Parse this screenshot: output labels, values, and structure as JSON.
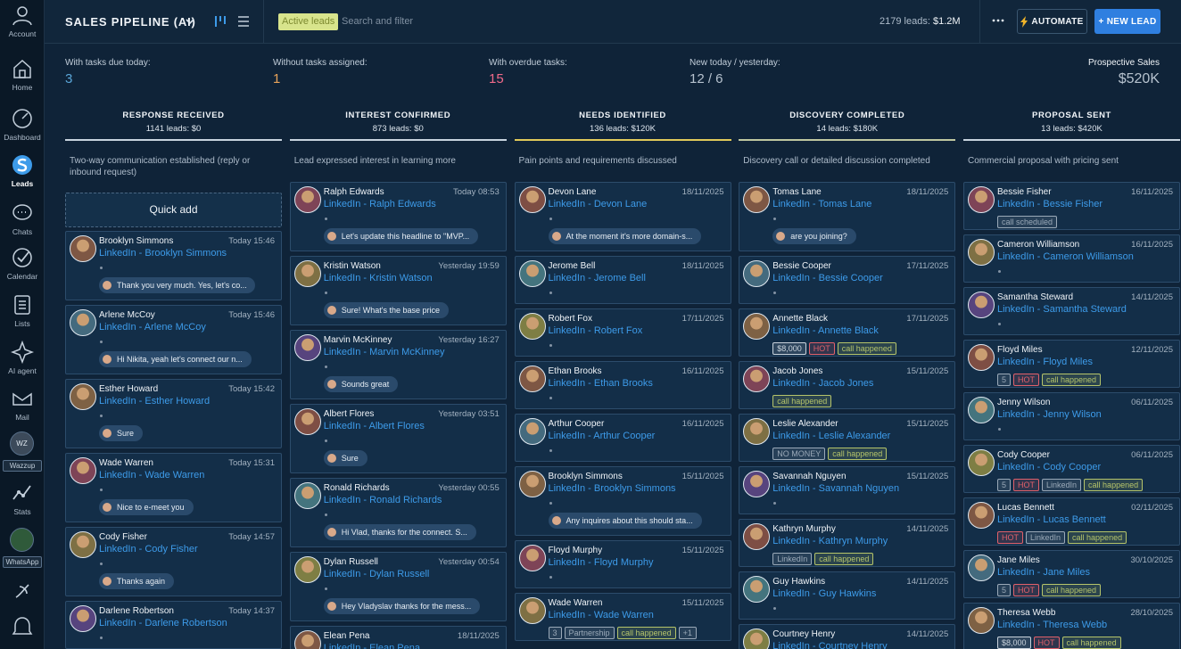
{
  "sidebar": [
    "Account",
    "Home",
    "Dashboard",
    "Leads",
    "Chats",
    "Calendar",
    "Lists",
    "AI agent",
    "Mail",
    "Wazzup",
    "Stats",
    "WhatsApp"
  ],
  "wazzup_badge": "WZ",
  "header": {
    "title": "SALES PIPELINE (AI)",
    "filter_chip": "Active leads",
    "search_placeholder": "Search and filter",
    "leads_count": "2179 leads:",
    "leads_value": "$1.2M",
    "automate": "AUTOMATE",
    "new_lead": "+ NEW LEAD"
  },
  "stats": [
    {
      "label": "With tasks due today:",
      "value": 3
    },
    {
      "label": "Without tasks assigned:",
      "value": 1
    },
    {
      "label": "With overdue tasks:",
      "value": 15
    },
    {
      "label": "New today / yesterday:",
      "value": "12 / 6"
    }
  ],
  "prospective": {
    "label": "Prospective Sales",
    "value": "$520K"
  },
  "quick_add": "Quick add",
  "columns": [
    {
      "title": "RESPONSE RECEIVED",
      "summary": "1141 leads: $0",
      "description": "Two-way communication established (reply or inbound request)",
      "cards": [
        {
          "name": "Brooklyn Simmons",
          "time": "Today 15:46",
          "source": "LinkedIn - Brooklyn Simmons",
          "message": "Thank you very much. Yes, let's co..."
        },
        {
          "name": "Arlene McCoy",
          "time": "Today 15:46",
          "source": "LinkedIn - Arlene McCoy",
          "message": "Hi Nikita, yeah let's connect our n..."
        },
        {
          "name": "Esther Howard",
          "time": "Today 15:42",
          "source": "LinkedIn - Esther Howard",
          "message": "Sure"
        },
        {
          "name": "Wade Warren",
          "time": "Today 15:31",
          "source": "LinkedIn - Wade Warren",
          "message": "Nice to e-meet you"
        },
        {
          "name": "Cody Fisher",
          "time": "Today 14:57",
          "source": "LinkedIn - Cody Fisher",
          "message": "Thanks again"
        },
        {
          "name": "Darlene Robertson",
          "time": "Today 14:37",
          "source": "LinkedIn - Darlene Robertson"
        }
      ]
    },
    {
      "title": "INTEREST CONFIRMED",
      "summary": "873 leads: $0",
      "description": "Lead expressed interest in learning more",
      "cards": [
        {
          "name": "Ralph Edwards",
          "time": "Today 08:53",
          "source": "LinkedIn - Ralph Edwards",
          "message": "Let's update this headline to \"MVP..."
        },
        {
          "name": "Kristin Watson",
          "time": "Yesterday 19:59",
          "source": "LinkedIn - Kristin Watson",
          "message": "Sure! What's the base price"
        },
        {
          "name": "Marvin McKinney",
          "time": "Yesterday 16:27",
          "source": "LinkedIn - Marvin McKinney",
          "message": "Sounds great"
        },
        {
          "name": "Albert Flores",
          "time": "Yesterday 03:51",
          "source": "LinkedIn - Albert Flores",
          "message": "Sure"
        },
        {
          "name": "Ronald Richards",
          "time": "Yesterday 00:55",
          "source": "LinkedIn - Ronald Richards",
          "message": "Hi Vlad, thanks for the connect.   S..."
        },
        {
          "name": "Dylan Russell",
          "time": "Yesterday 00:54",
          "source": "LinkedIn - Dylan Russell",
          "message": "Hey Vladyslav thanks for the mess..."
        },
        {
          "name": "Elean Pena",
          "time": "18/11/2025",
          "source": "LinkedIn - Elean Pena"
        }
      ]
    },
    {
      "title": "NEEDS IDENTIFIED",
      "summary": "136 leads: $120K",
      "description": "Pain points and requirements discussed",
      "cards": [
        {
          "name": "Devon Lane",
          "time": "18/11/2025",
          "source": "LinkedIn - Devon Lane",
          "message": "At the moment it's more domain-s..."
        },
        {
          "name": "Jerome Bell",
          "time": "18/11/2025",
          "source": "LinkedIn - Jerome Bell"
        },
        {
          "name": "Robert Fox",
          "time": "17/11/2025",
          "source": "LinkedIn - Robert Fox"
        },
        {
          "name": "Ethan Brooks",
          "time": "16/11/2025",
          "source": "LinkedIn - Ethan Brooks"
        },
        {
          "name": "Arthur Cooper",
          "time": "16/11/2025",
          "source": "LinkedIn - Arthur Cooper"
        },
        {
          "name": "Brooklyn Simmons",
          "time": "15/11/2025",
          "source": "LinkedIn - Brooklyn Simmons",
          "message": "Any inquires about this should sta..."
        },
        {
          "name": "Floyd Murphy",
          "time": "15/11/2025",
          "source": "LinkedIn - Floyd Murphy"
        },
        {
          "name": "Wade Warren",
          "time": "15/11/2025",
          "source": "LinkedIn - Wade Warren",
          "tags": [
            {
              "text": "3",
              "color": "#9aa9b8"
            },
            {
              "text": "Partnership",
              "color": "#9aa9b8"
            },
            {
              "text": "call happened",
              "color": "#b5c46a"
            },
            {
              "text": "+1",
              "color": "#9aa9b8"
            }
          ]
        }
      ]
    },
    {
      "title": "DISCOVERY COMPLETED",
      "summary": "14 leads: $180K",
      "description": "Discovery call or detailed discussion completed",
      "cards": [
        {
          "name": "Tomas Lane",
          "time": "18/11/2025",
          "source": "LinkedIn - Tomas Lane",
          "message": "are you joining?"
        },
        {
          "name": "Bessie Cooper",
          "time": "17/11/2025",
          "source": "LinkedIn - Bessie Cooper"
        },
        {
          "name": "Annette Black",
          "time": "17/11/2025",
          "source": "LinkedIn - Annette Black",
          "tags": [
            {
              "text": "$8,000",
              "color": "#c9d3dc"
            },
            {
              "text": "HOT",
              "color": "#e0606a"
            },
            {
              "text": "call happened",
              "color": "#b5c46a"
            }
          ]
        },
        {
          "name": "Jacob Jones",
          "time": "15/11/2025",
          "source": "LinkedIn - Jacob Jones",
          "tags": [
            {
              "text": "call happened",
              "color": "#b5c46a"
            }
          ]
        },
        {
          "name": "Leslie Alexander",
          "time": "15/11/2025",
          "source": "LinkedIn - Leslie Alexander",
          "tags": [
            {
              "text": "NO MONEY",
              "color": "#9aa9b8"
            },
            {
              "text": "call happened",
              "color": "#b5c46a"
            }
          ]
        },
        {
          "name": "Savannah Nguyen",
          "time": "15/11/2025",
          "source": "LinkedIn - Savannah Nguyen"
        },
        {
          "name": "Kathryn Murphy",
          "time": "14/11/2025",
          "source": "LinkedIn - Kathryn Murphy",
          "tags": [
            {
              "text": "LinkedIn",
              "color": "#9aa9b8"
            },
            {
              "text": "call happened",
              "color": "#b5c46a"
            }
          ]
        },
        {
          "name": "Guy Hawkins",
          "time": "14/11/2025",
          "source": "LinkedIn - Guy Hawkins"
        },
        {
          "name": "Courtney Henry",
          "time": "14/11/2025",
          "source": "LinkedIn - Courtney Henry"
        }
      ]
    },
    {
      "title": "PROPOSAL SENT",
      "summary": "13 leads: $420K",
      "description": "Commercial proposal with pricing sent",
      "cards": [
        {
          "name": "Bessie Fisher",
          "time": "16/11/2025",
          "source": "LinkedIn - Bessie Fisher",
          "tags": [
            {
              "text": "call scheduled",
              "color": "#9aa9b8"
            }
          ]
        },
        {
          "name": "Cameron Williamson",
          "time": "16/11/2025",
          "source": "LinkedIn - Cameron Williamson"
        },
        {
          "name": "Samantha Steward",
          "time": "14/11/2025",
          "source": "LinkedIn - Samantha Steward"
        },
        {
          "name": "Floyd Miles",
          "time": "12/11/2025",
          "source": "LinkedIn - Floyd Miles",
          "tags": [
            {
              "text": "5",
              "color": "#9aa9b8"
            },
            {
              "text": "HOT",
              "color": "#e0606a"
            },
            {
              "text": "call happened",
              "color": "#b5c46a"
            }
          ]
        },
        {
          "name": "Jenny Wilson",
          "time": "06/11/2025",
          "source": "LinkedIn - Jenny Wilson"
        },
        {
          "name": "Cody Cooper",
          "time": "06/11/2025",
          "source": "LinkedIn - Cody Cooper",
          "tags": [
            {
              "text": "5",
              "color": "#9aa9b8"
            },
            {
              "text": "HOT",
              "color": "#e0606a"
            },
            {
              "text": "LinkedIn",
              "color": "#9aa9b8"
            },
            {
              "text": "call happened",
              "color": "#b5c46a"
            }
          ]
        },
        {
          "name": "Lucas Bennett",
          "time": "02/11/2025",
          "source": "LinkedIn - Lucas Bennett",
          "tags": [
            {
              "text": "HOT",
              "color": "#e0606a"
            },
            {
              "text": "LinkedIn",
              "color": "#9aa9b8"
            },
            {
              "text": "call happened",
              "color": "#b5c46a"
            }
          ]
        },
        {
          "name": "Jane Miles",
          "time": "30/10/2025",
          "source": "LinkedIn - Jane Miles",
          "tags": [
            {
              "text": "5",
              "color": "#9aa9b8"
            },
            {
              "text": "HOT",
              "color": "#e0606a"
            },
            {
              "text": "call happened",
              "color": "#b5c46a"
            }
          ]
        },
        {
          "name": "Theresa Webb",
          "time": "28/10/2025",
          "source": "LinkedIn - Theresa Webb",
          "tags": [
            {
              "text": "$8,000",
              "color": "#c9d3dc"
            },
            {
              "text": "HOT",
              "color": "#e0606a"
            },
            {
              "text": "call happened",
              "color": "#b5c46a"
            }
          ]
        }
      ]
    }
  ]
}
